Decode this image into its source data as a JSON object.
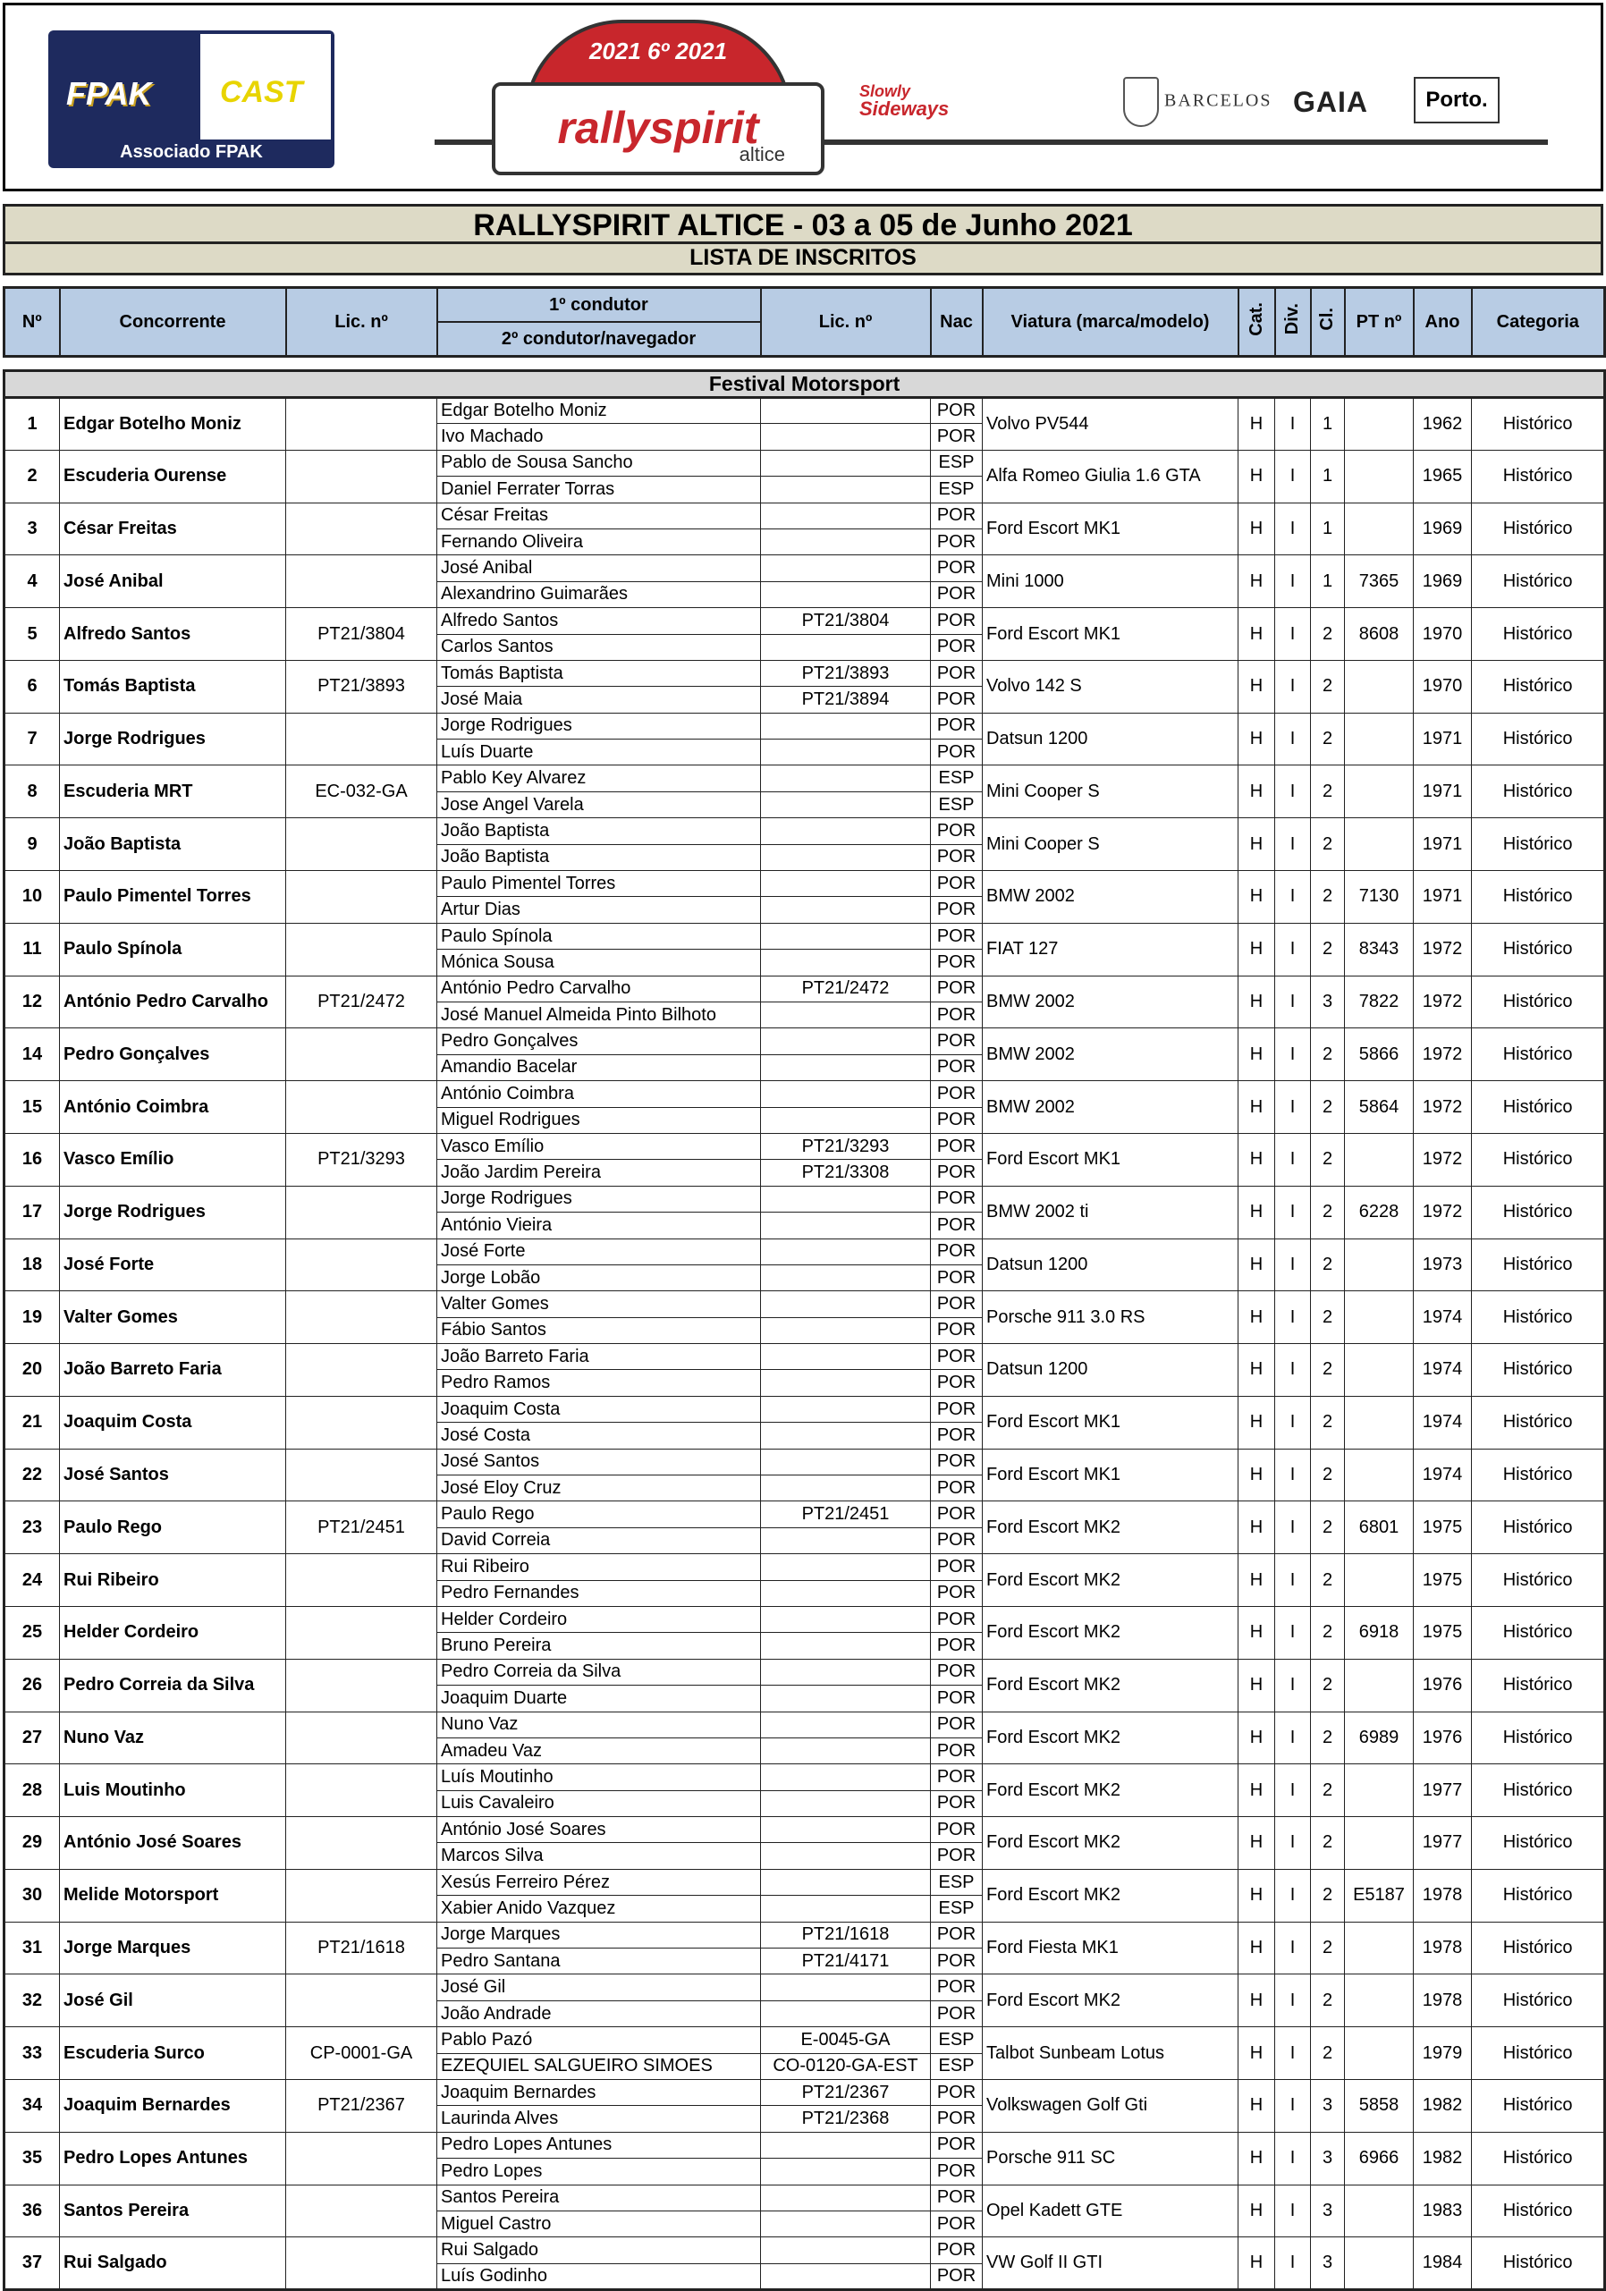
{
  "logos": {
    "fpak": "FPAK",
    "cast": "CAST",
    "associado": "Associado FPAK",
    "rally_year": "2021 6º 2021",
    "rally_name": "rallyspirit",
    "rally_sponsor": "altice",
    "slowly": "Slowly",
    "sideways": "Sideways",
    "barcelos": "BARCELOS",
    "gaia": "GAIA",
    "porto": "Porto."
  },
  "title": "RALLYSPIRIT ALTICE - 03 a 05 de Junho 2021",
  "subtitle": "LISTA DE INSCRITOS",
  "headers": {
    "no": "Nº",
    "concorrente": "Concorrente",
    "lic": "Lic.  nº",
    "driver1": "1º condutor",
    "driver2": "2º condutor/navegador",
    "lic2": "Lic. nº",
    "nac": "Nac",
    "viatura": "Viatura (marca/modelo)",
    "cat": "Cat.",
    "div": "Div.",
    "cl": "Cl.",
    "pt": "PT nº",
    "ano": "Ano",
    "categoria": "Categoria"
  },
  "section": "Festival Motorsport",
  "rows": [
    {
      "no": "1",
      "conc": "Edgar Botelho Moniz",
      "lic": "",
      "d1": "Edgar Botelho Moniz",
      "l1": "",
      "n1": "POR",
      "d2": "Ivo Machado",
      "l2": "",
      "n2": "POR",
      "car": "Volvo PV544",
      "cat": "H",
      "div": "I",
      "cl": "1",
      "pt": "",
      "ano": "1962",
      "categoria": "Histórico"
    },
    {
      "no": "2",
      "conc": "Escuderia Ourense",
      "lic": "",
      "d1": "Pablo de Sousa Sancho",
      "l1": "",
      "n1": "ESP",
      "d2": "Daniel Ferrater Torras",
      "l2": "",
      "n2": "ESP",
      "car": "Alfa Romeo Giulia 1.6 GTA",
      "cat": "H",
      "div": "I",
      "cl": "1",
      "pt": "",
      "ano": "1965",
      "categoria": "Histórico"
    },
    {
      "no": "3",
      "conc": "César Freitas",
      "lic": "",
      "d1": "César Freitas",
      "l1": "",
      "n1": "POR",
      "d2": "Fernando Oliveira",
      "l2": "",
      "n2": "POR",
      "car": "Ford Escort MK1",
      "cat": "H",
      "div": "I",
      "cl": "1",
      "pt": "",
      "ano": "1969",
      "categoria": "Histórico"
    },
    {
      "no": "4",
      "conc": "José Anibal",
      "lic": "",
      "d1": "José Anibal",
      "l1": "",
      "n1": "POR",
      "d2": "Alexandrino Guimarães",
      "l2": "",
      "n2": "POR",
      "car": "Mini 1000",
      "cat": "H",
      "div": "I",
      "cl": "1",
      "pt": "7365",
      "ano": "1969",
      "categoria": "Histórico"
    },
    {
      "no": "5",
      "conc": "Alfredo Santos",
      "lic": "PT21/3804",
      "d1": "Alfredo Santos",
      "l1": "PT21/3804",
      "n1": "POR",
      "d2": "Carlos Santos",
      "l2": "",
      "n2": "POR",
      "car": "Ford Escort MK1",
      "cat": "H",
      "div": "I",
      "cl": "2",
      "pt": "8608",
      "ano": "1970",
      "categoria": "Histórico"
    },
    {
      "no": "6",
      "conc": "Tomás Baptista",
      "lic": "PT21/3893",
      "d1": "Tomás Baptista",
      "l1": "PT21/3893",
      "n1": "POR",
      "d2": "José Maia",
      "l2": "PT21/3894",
      "n2": "POR",
      "car": "Volvo 142 S",
      "cat": "H",
      "div": "I",
      "cl": "2",
      "pt": "",
      "ano": "1970",
      "categoria": "Histórico"
    },
    {
      "no": "7",
      "conc": "Jorge Rodrigues",
      "lic": "",
      "d1": "Jorge Rodrigues",
      "l1": "",
      "n1": "POR",
      "d2": "Luís Duarte",
      "l2": "",
      "n2": "POR",
      "car": "Datsun 1200",
      "cat": "H",
      "div": "I",
      "cl": "2",
      "pt": "",
      "ano": "1971",
      "categoria": "Histórico"
    },
    {
      "no": "8",
      "conc": "Escuderia MRT",
      "lic": "EC-032-GA",
      "d1": "Pablo Key Alvarez",
      "l1": "",
      "n1": "ESP",
      "d2": "Jose Angel Varela",
      "l2": "",
      "n2": "ESP",
      "car": "Mini Cooper S",
      "cat": "H",
      "div": "I",
      "cl": "2",
      "pt": "",
      "ano": "1971",
      "categoria": "Histórico"
    },
    {
      "no": "9",
      "conc": "João Baptista",
      "lic": "",
      "d1": "João Baptista",
      "l1": "",
      "n1": "POR",
      "d2": "João Baptista",
      "l2": "",
      "n2": "POR",
      "car": "Mini Cooper S",
      "cat": "H",
      "div": "I",
      "cl": "2",
      "pt": "",
      "ano": "1971",
      "categoria": "Histórico"
    },
    {
      "no": "10",
      "conc": "Paulo Pimentel Torres",
      "lic": "",
      "d1": "Paulo Pimentel Torres",
      "l1": "",
      "n1": "POR",
      "d2": "Artur Dias",
      "l2": "",
      "n2": "POR",
      "car": "BMW 2002",
      "cat": "H",
      "div": "I",
      "cl": "2",
      "pt": "7130",
      "ano": "1971",
      "categoria": "Histórico"
    },
    {
      "no": "11",
      "conc": "Paulo Spínola",
      "lic": "",
      "d1": "Paulo Spínola",
      "l1": "",
      "n1": "POR",
      "d2": "Mónica Sousa",
      "l2": "",
      "n2": "POR",
      "car": "FIAT 127",
      "cat": "H",
      "div": "I",
      "cl": "2",
      "pt": "8343",
      "ano": "1972",
      "categoria": "Histórico"
    },
    {
      "no": "12",
      "conc": "António Pedro Carvalho",
      "lic": "PT21/2472",
      "d1": "António Pedro Carvalho",
      "l1": "PT21/2472",
      "n1": "POR",
      "d2": "José Manuel Almeida Pinto Bilhoto",
      "l2": "",
      "n2": "POR",
      "car": "BMW 2002",
      "cat": "H",
      "div": "I",
      "cl": "3",
      "pt": "7822",
      "ano": "1972",
      "categoria": "Histórico"
    },
    {
      "no": "14",
      "conc": "Pedro Gonçalves",
      "lic": "",
      "d1": "Pedro Gonçalves",
      "l1": "",
      "n1": "POR",
      "d2": "Amandio Bacelar",
      "l2": "",
      "n2": "POR",
      "car": "BMW 2002",
      "cat": "H",
      "div": "I",
      "cl": "2",
      "pt": "5866",
      "ano": "1972",
      "categoria": "Histórico"
    },
    {
      "no": "15",
      "conc": "António Coimbra",
      "lic": "",
      "d1": "António Coimbra",
      "l1": "",
      "n1": "POR",
      "d2": "Miguel Rodrigues",
      "l2": "",
      "n2": "POR",
      "car": "BMW 2002",
      "cat": "H",
      "div": "I",
      "cl": "2",
      "pt": "5864",
      "ano": "1972",
      "categoria": "Histórico"
    },
    {
      "no": "16",
      "conc": "Vasco Emílio",
      "lic": "PT21/3293",
      "d1": "Vasco Emílio",
      "l1": "PT21/3293",
      "n1": "POR",
      "d2": "João Jardim Pereira",
      "l2": "PT21/3308",
      "n2": "POR",
      "car": "Ford Escort MK1",
      "cat": "H",
      "div": "I",
      "cl": "2",
      "pt": "",
      "ano": "1972",
      "categoria": "Histórico"
    },
    {
      "no": "17",
      "conc": "Jorge Rodrigues",
      "lic": "",
      "d1": "Jorge Rodrigues",
      "l1": "",
      "n1": "POR",
      "d2": "António Vieira",
      "l2": "",
      "n2": "POR",
      "car": "BMW 2002 ti",
      "cat": "H",
      "div": "I",
      "cl": "2",
      "pt": "6228",
      "ano": "1972",
      "categoria": "Histórico"
    },
    {
      "no": "18",
      "conc": "José Forte",
      "lic": "",
      "d1": "José Forte",
      "l1": "",
      "n1": "POR",
      "d2": "Jorge Lobão",
      "l2": "",
      "n2": "POR",
      "car": "Datsun 1200",
      "cat": "H",
      "div": "I",
      "cl": "2",
      "pt": "",
      "ano": "1973",
      "categoria": "Histórico"
    },
    {
      "no": "19",
      "conc": "Valter Gomes",
      "lic": "",
      "d1": "Valter Gomes",
      "l1": "",
      "n1": "POR",
      "d2": "Fábio Santos",
      "l2": "",
      "n2": "POR",
      "car": "Porsche 911 3.0 RS",
      "cat": "H",
      "div": "I",
      "cl": "2",
      "pt": "",
      "ano": "1974",
      "categoria": "Histórico"
    },
    {
      "no": "20",
      "conc": "João Barreto Faria",
      "lic": "",
      "d1": "João Barreto Faria",
      "l1": "",
      "n1": "POR",
      "d2": "Pedro Ramos",
      "l2": "",
      "n2": "POR",
      "car": "Datsun 1200",
      "cat": "H",
      "div": "I",
      "cl": "2",
      "pt": "",
      "ano": "1974",
      "categoria": "Histórico"
    },
    {
      "no": "21",
      "conc": "Joaquim Costa",
      "lic": "",
      "d1": "Joaquim Costa",
      "l1": "",
      "n1": "POR",
      "d2": "José Costa",
      "l2": "",
      "n2": "POR",
      "car": "Ford Escort MK1",
      "cat": "H",
      "div": "I",
      "cl": "2",
      "pt": "",
      "ano": "1974",
      "categoria": "Histórico"
    },
    {
      "no": "22",
      "conc": "José Santos",
      "lic": "",
      "d1": "José Santos",
      "l1": "",
      "n1": "POR",
      "d2": "José Eloy Cruz",
      "l2": "",
      "n2": "POR",
      "car": "Ford Escort MK1",
      "cat": "H",
      "div": "I",
      "cl": "2",
      "pt": "",
      "ano": "1974",
      "categoria": "Histórico"
    },
    {
      "no": "23",
      "conc": "Paulo Rego",
      "lic": "PT21/2451",
      "d1": "Paulo Rego",
      "l1": "PT21/2451",
      "n1": "POR",
      "d2": "David Correia",
      "l2": "",
      "n2": "POR",
      "car": "Ford Escort MK2",
      "cat": "H",
      "div": "I",
      "cl": "2",
      "pt": "6801",
      "ano": "1975",
      "categoria": "Histórico"
    },
    {
      "no": "24",
      "conc": "Rui Ribeiro",
      "lic": "",
      "d1": "Rui Ribeiro",
      "l1": "",
      "n1": "POR",
      "d2": "Pedro Fernandes",
      "l2": "",
      "n2": "POR",
      "car": "Ford Escort MK2",
      "cat": "H",
      "div": "I",
      "cl": "2",
      "pt": "",
      "ano": "1975",
      "categoria": "Histórico"
    },
    {
      "no": "25",
      "conc": "Helder Cordeiro",
      "lic": "",
      "d1": "Helder Cordeiro",
      "l1": "",
      "n1": "POR",
      "d2": "Bruno Pereira",
      "l2": "",
      "n2": "POR",
      "car": "Ford Escort MK2",
      "cat": "H",
      "div": "I",
      "cl": "2",
      "pt": "6918",
      "ano": "1975",
      "categoria": "Histórico"
    },
    {
      "no": "26",
      "conc": "Pedro Correia da Silva",
      "lic": "",
      "d1": "Pedro Correia da Silva",
      "l1": "",
      "n1": "POR",
      "d2": "Joaquim Duarte",
      "l2": "",
      "n2": "POR",
      "car": "Ford Escort MK2",
      "cat": "H",
      "div": "I",
      "cl": "2",
      "pt": "",
      "ano": "1976",
      "categoria": "Histórico"
    },
    {
      "no": "27",
      "conc": "Nuno Vaz",
      "lic": "",
      "d1": "Nuno Vaz",
      "l1": "",
      "n1": "POR",
      "d2": "Amadeu Vaz",
      "l2": "",
      "n2": "POR",
      "car": "Ford Escort MK2",
      "cat": "H",
      "div": "I",
      "cl": "2",
      "pt": "6989",
      "ano": "1976",
      "categoria": "Histórico"
    },
    {
      "no": "28",
      "conc": "Luis Moutinho",
      "lic": "",
      "d1": "Luís Moutinho",
      "l1": "",
      "n1": "POR",
      "d2": "Luis Cavaleiro",
      "l2": "",
      "n2": "POR",
      "car": "Ford Escort MK2",
      "cat": "H",
      "div": "I",
      "cl": "2",
      "pt": "",
      "ano": "1977",
      "categoria": "Histórico"
    },
    {
      "no": "29",
      "conc": "António José Soares",
      "lic": "",
      "d1": "António José Soares",
      "l1": "",
      "n1": "POR",
      "d2": "Marcos Silva",
      "l2": "",
      "n2": "POR",
      "car": "Ford Escort MK2",
      "cat": "H",
      "div": "I",
      "cl": "2",
      "pt": "",
      "ano": "1977",
      "categoria": "Histórico"
    },
    {
      "no": "30",
      "conc": "Melide Motorsport",
      "lic": "",
      "d1": "Xesús Ferreiro Pérez",
      "l1": "",
      "n1": "ESP",
      "d2": "Xabier Anido Vazquez",
      "l2": "",
      "n2": "ESP",
      "car": "Ford Escort MK2",
      "cat": "H",
      "div": "I",
      "cl": "2",
      "pt": "E5187",
      "ano": "1978",
      "categoria": "Histórico"
    },
    {
      "no": "31",
      "conc": "Jorge Marques",
      "lic": "PT21/1618",
      "d1": "Jorge Marques",
      "l1": "PT21/1618",
      "n1": "POR",
      "d2": "Pedro Santana",
      "l2": "PT21/4171",
      "n2": "POR",
      "car": "Ford Fiesta MK1",
      "cat": "H",
      "div": "I",
      "cl": "2",
      "pt": "",
      "ano": "1978",
      "categoria": "Histórico"
    },
    {
      "no": "32",
      "conc": "José Gil",
      "lic": "",
      "d1": "José Gil",
      "l1": "",
      "n1": "POR",
      "d2": "João Andrade",
      "l2": "",
      "n2": "POR",
      "car": "Ford Escort MK2",
      "cat": "H",
      "div": "I",
      "cl": "2",
      "pt": "",
      "ano": "1978",
      "categoria": "Histórico"
    },
    {
      "no": "33",
      "conc": "Escuderia Surco",
      "lic": "CP-0001-GA",
      "d1": "Pablo Pazó",
      "l1": "E-0045-GA",
      "n1": "ESP",
      "d2": "EZEQUIEL SALGUEIRO SIMOES",
      "l2": "CO-0120-GA-EST",
      "n2": "ESP",
      "car": "Talbot Sunbeam Lotus",
      "cat": "H",
      "div": "I",
      "cl": "2",
      "pt": "",
      "ano": "1979",
      "categoria": "Histórico"
    },
    {
      "no": "34",
      "conc": "Joaquim Bernardes",
      "lic": "PT21/2367",
      "d1": "Joaquim Bernardes",
      "l1": "PT21/2367",
      "n1": "POR",
      "d2": "Laurinda Alves",
      "l2": "PT21/2368",
      "n2": "POR",
      "car": "Volkswagen Golf Gti",
      "cat": "H",
      "div": "I",
      "cl": "3",
      "pt": "5858",
      "ano": "1982",
      "categoria": "Histórico"
    },
    {
      "no": "35",
      "conc": "Pedro Lopes Antunes",
      "lic": "",
      "d1": "Pedro Lopes Antunes",
      "l1": "",
      "n1": "POR",
      "d2": "Pedro Lopes",
      "l2": "",
      "n2": "POR",
      "car": "Porsche 911 SC",
      "cat": "H",
      "div": "I",
      "cl": "3",
      "pt": "6966",
      "ano": "1982",
      "categoria": "Histórico"
    },
    {
      "no": "36",
      "conc": "Santos Pereira",
      "lic": "",
      "d1": "Santos Pereira",
      "l1": "",
      "n1": "POR",
      "d2": "Miguel Castro",
      "l2": "",
      "n2": "POR",
      "car": "Opel Kadett GTE",
      "cat": "H",
      "div": "I",
      "cl": "3",
      "pt": "",
      "ano": "1983",
      "categoria": "Histórico"
    },
    {
      "no": "37",
      "conc": "Rui Salgado",
      "lic": "",
      "d1": "Rui Salgado",
      "l1": "",
      "n1": "POR",
      "d2": "Luís Godinho",
      "l2": "",
      "n2": "POR",
      "car": "VW Golf II GTI",
      "cat": "H",
      "div": "I",
      "cl": "3",
      "pt": "",
      "ano": "1984",
      "categoria": "Histórico"
    }
  ]
}
